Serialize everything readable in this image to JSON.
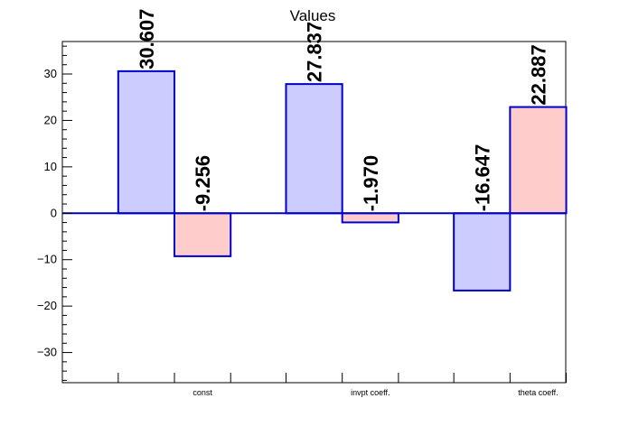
{
  "chart_data": {
    "type": "bar",
    "title": "Values",
    "categories": [
      "const",
      "invpt coeff.",
      "theta coeff."
    ],
    "series": [
      {
        "values": [
          30.607,
          27.837,
          -16.647
        ],
        "color": "#ccccff",
        "edge": "#0000cc"
      },
      {
        "values": [
          -9.256,
          -1.97,
          22.887
        ],
        "color": "#ffcccc",
        "edge": "#0000cc"
      }
    ],
    "data_labels": [
      [
        "30.607",
        "27.837",
        "-16.647"
      ],
      [
        "-9.256",
        "-1.970",
        "22.887"
      ]
    ],
    "ylim": [
      -36.5,
      37
    ],
    "yticks": [
      -30,
      -20,
      -10,
      0,
      10,
      20,
      30
    ],
    "ytick_labels": [
      "−30",
      "−20",
      "−10",
      "0",
      "10",
      "20",
      "30"
    ],
    "grid": false,
    "legend": "none",
    "zero_line_color": "#0000cc"
  }
}
